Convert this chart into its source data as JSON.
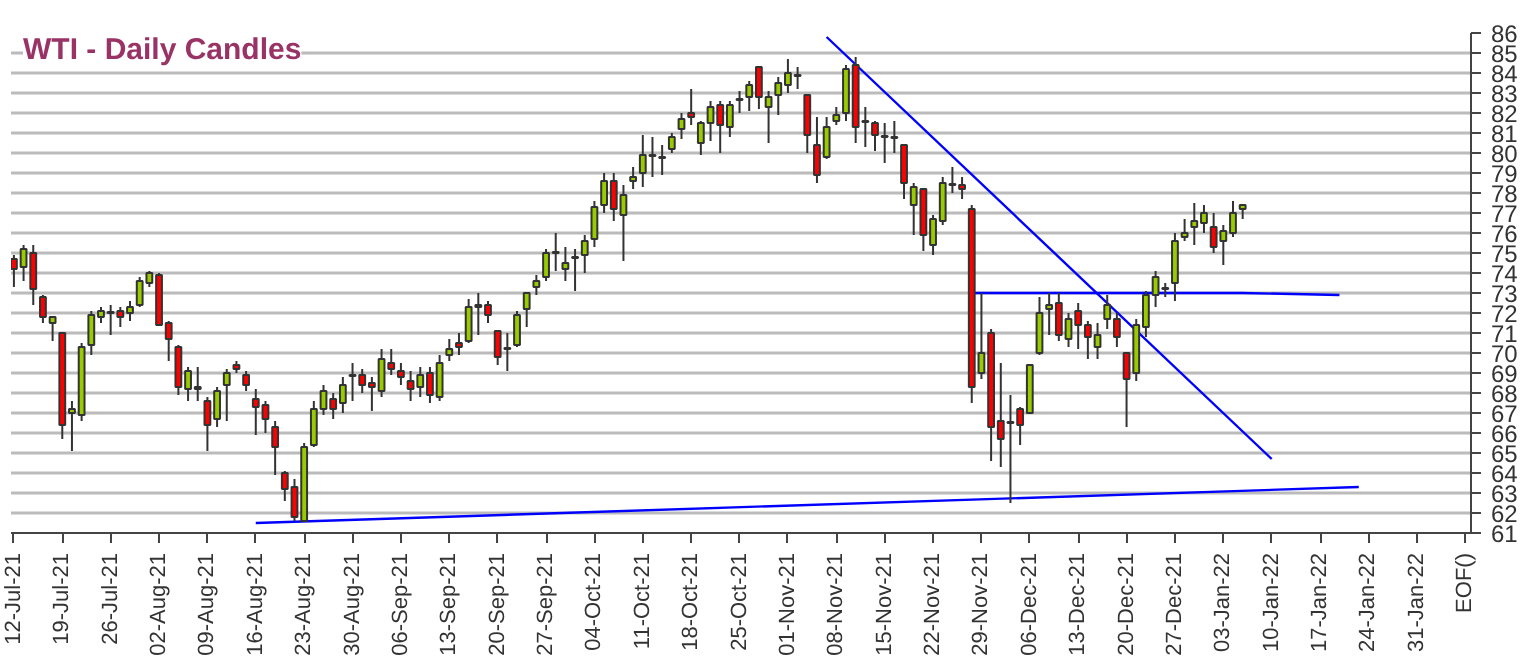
{
  "chart_data": {
    "type": "candlestick",
    "title": "WTI - Daily Candles",
    "ohlc": [
      [
        74.7,
        74.9,
        73.3,
        74.2
      ],
      [
        74.3,
        75.4,
        73.6,
        75.2
      ],
      [
        75.0,
        75.4,
        72.4,
        73.2
      ],
      [
        72.8,
        72.9,
        71.5,
        71.8
      ],
      [
        71.5,
        71.8,
        70.6,
        71.8
      ],
      [
        71.0,
        71.0,
        65.7,
        66.4
      ],
      [
        67.0,
        67.6,
        65.1,
        67.2
      ],
      [
        66.9,
        70.5,
        66.6,
        70.3
      ],
      [
        70.4,
        72.1,
        69.9,
        71.9
      ],
      [
        71.8,
        72.3,
        71.5,
        72.1
      ],
      [
        72.05,
        72.4,
        70.9,
        72.0
      ],
      [
        72.1,
        72.3,
        71.3,
        71.8
      ],
      [
        72.0,
        72.6,
        71.6,
        72.3
      ],
      [
        72.4,
        73.8,
        72.3,
        73.6
      ],
      [
        73.5,
        74.1,
        73.3,
        74.0
      ],
      [
        73.9,
        74.0,
        71.4,
        71.4
      ],
      [
        71.5,
        71.6,
        69.6,
        70.7
      ],
      [
        70.3,
        70.4,
        67.9,
        68.3
      ],
      [
        68.2,
        69.3,
        67.6,
        69.1
      ],
      [
        68.3,
        69.3,
        67.6,
        68.2
      ],
      [
        67.6,
        67.8,
        65.1,
        66.4
      ],
      [
        66.7,
        68.3,
        66.3,
        68.1
      ],
      [
        68.4,
        69.2,
        66.6,
        69.0
      ],
      [
        69.4,
        69.6,
        69.0,
        69.2
      ],
      [
        68.9,
        69.1,
        68.1,
        68.4
      ],
      [
        67.7,
        68.2,
        65.9,
        67.3
      ],
      [
        67.4,
        67.6,
        66.0,
        66.7
      ],
      [
        66.3,
        66.6,
        63.9,
        65.3
      ],
      [
        64.0,
        64.1,
        62.6,
        63.2
      ],
      [
        63.3,
        63.7,
        61.6,
        61.8
      ],
      [
        61.6,
        65.5,
        61.6,
        65.3
      ],
      [
        65.4,
        67.6,
        65.3,
        67.2
      ],
      [
        67.2,
        68.4,
        66.9,
        68.1
      ],
      [
        67.7,
        68.0,
        66.7,
        67.2
      ],
      [
        67.5,
        68.8,
        67.0,
        68.4
      ],
      [
        68.85,
        69.5,
        67.6,
        68.9
      ],
      [
        68.9,
        69.2,
        68.0,
        68.4
      ],
      [
        68.5,
        68.8,
        67.1,
        68.3
      ],
      [
        68.1,
        70.2,
        67.8,
        69.7
      ],
      [
        69.5,
        70.2,
        68.9,
        69.2
      ],
      [
        69.1,
        69.5,
        68.4,
        68.8
      ],
      [
        68.6,
        69.1,
        67.6,
        68.2
      ],
      [
        68.3,
        69.3,
        67.8,
        68.9
      ],
      [
        69.0,
        69.3,
        67.5,
        67.9
      ],
      [
        67.8,
        69.9,
        67.6,
        69.5
      ],
      [
        69.9,
        70.7,
        69.6,
        70.2
      ],
      [
        70.5,
        71.0,
        69.9,
        70.3
      ],
      [
        70.6,
        72.7,
        70.5,
        72.3
      ],
      [
        72.4,
        73.0,
        70.9,
        72.3
      ],
      [
        72.4,
        72.6,
        71.5,
        71.9
      ],
      [
        71.1,
        71.1,
        69.4,
        69.8
      ],
      [
        70.2,
        71.0,
        69.1,
        70.25
      ],
      [
        70.4,
        72.1,
        70.3,
        71.9
      ],
      [
        72.2,
        73.0,
        71.3,
        73.0
      ],
      [
        73.3,
        73.9,
        72.9,
        73.6
      ],
      [
        73.8,
        75.2,
        73.6,
        75.0
      ],
      [
        75.0,
        76.0,
        74.1,
        75.05
      ],
      [
        74.2,
        75.3,
        73.6,
        74.5
      ],
      [
        74.8,
        75.2,
        73.1,
        74.75
      ],
      [
        74.9,
        75.9,
        74.0,
        75.6
      ],
      [
        75.7,
        77.6,
        75.3,
        77.3
      ],
      [
        77.4,
        79.0,
        77.0,
        78.6
      ],
      [
        78.6,
        79.0,
        76.6,
        77.2
      ],
      [
        76.9,
        78.4,
        74.6,
        77.9
      ],
      [
        78.6,
        79.3,
        78.2,
        78.8
      ],
      [
        79.0,
        80.9,
        78.3,
        79.9
      ],
      [
        79.85,
        80.8,
        78.8,
        79.9
      ],
      [
        79.8,
        80.4,
        78.9,
        79.75
      ],
      [
        80.2,
        81.0,
        80.0,
        80.8
      ],
      [
        81.2,
        82.0,
        80.7,
        81.7
      ],
      [
        82.0,
        83.2,
        81.4,
        81.8
      ],
      [
        80.5,
        81.6,
        79.9,
        81.5
      ],
      [
        81.5,
        82.6,
        80.6,
        82.3
      ],
      [
        82.4,
        82.6,
        80.0,
        81.4
      ],
      [
        81.3,
        82.6,
        80.8,
        82.4
      ],
      [
        82.65,
        83.1,
        82.0,
        82.7
      ],
      [
        82.8,
        83.6,
        82.1,
        83.4
      ],
      [
        84.3,
        84.3,
        82.2,
        82.8
      ],
      [
        82.3,
        83.1,
        80.5,
        82.8
      ],
      [
        82.9,
        83.8,
        81.9,
        83.5
      ],
      [
        83.4,
        84.7,
        83.0,
        84.0
      ],
      [
        83.9,
        84.3,
        83.2,
        83.85
      ],
      [
        82.9,
        82.9,
        80.0,
        80.9
      ],
      [
        80.4,
        81.8,
        78.5,
        78.9
      ],
      [
        79.8,
        81.8,
        79.7,
        81.3
      ],
      [
        81.6,
        82.3,
        81.4,
        81.9
      ],
      [
        82.0,
        84.4,
        81.6,
        84.2
      ],
      [
        84.4,
        84.8,
        80.5,
        81.3
      ],
      [
        81.6,
        82.3,
        80.3,
        81.55
      ],
      [
        81.5,
        81.6,
        80.1,
        80.9
      ],
      [
        80.85,
        81.5,
        79.5,
        80.8
      ],
      [
        80.8,
        81.6,
        80.0,
        80.75
      ],
      [
        80.4,
        80.4,
        77.7,
        78.5
      ],
      [
        77.4,
        78.5,
        75.9,
        78.3
      ],
      [
        78.2,
        78.2,
        75.1,
        75.9
      ],
      [
        75.4,
        76.9,
        74.9,
        76.7
      ],
      [
        76.6,
        78.8,
        76.4,
        78.5
      ],
      [
        78.4,
        79.3,
        78.0,
        78.45
      ],
      [
        78.4,
        78.8,
        77.7,
        78.2
      ],
      [
        77.2,
        77.4,
        67.5,
        68.3
      ],
      [
        69.0,
        73.0,
        68.7,
        70.0
      ],
      [
        71.0,
        71.2,
        64.6,
        66.3
      ],
      [
        66.6,
        69.5,
        64.3,
        65.7
      ],
      [
        66.55,
        67.9,
        62.5,
        66.5
      ],
      [
        67.2,
        67.3,
        65.4,
        66.4
      ],
      [
        67.0,
        69.4,
        67.0,
        69.4
      ],
      [
        70.0,
        72.8,
        69.9,
        72.0
      ],
      [
        72.2,
        73.0,
        70.9,
        72.4
      ],
      [
        72.5,
        73.0,
        70.6,
        70.9
      ],
      [
        70.7,
        72.0,
        70.3,
        71.7
      ],
      [
        72.1,
        72.5,
        70.2,
        71.4
      ],
      [
        71.4,
        71.6,
        69.7,
        70.8
      ],
      [
        70.3,
        71.5,
        69.7,
        70.9
      ],
      [
        71.7,
        72.9,
        71.2,
        72.4
      ],
      [
        71.7,
        72.0,
        70.3,
        70.8
      ],
      [
        70.0,
        70.0,
        66.3,
        68.7
      ],
      [
        69.0,
        71.7,
        68.6,
        71.4
      ],
      [
        71.3,
        73.1,
        70.8,
        72.9
      ],
      [
        72.9,
        74.1,
        72.3,
        73.8
      ],
      [
        73.2,
        73.5,
        72.8,
        73.25
      ],
      [
        73.5,
        76.0,
        72.6,
        75.6
      ],
      [
        75.8,
        76.7,
        75.6,
        76.0
      ],
      [
        76.3,
        77.5,
        75.4,
        76.6
      ],
      [
        76.5,
        77.4,
        76.0,
        77.0
      ],
      [
        76.3,
        77.0,
        75.0,
        75.3
      ],
      [
        75.6,
        76.4,
        74.4,
        76.1
      ],
      [
        76.0,
        77.6,
        75.8,
        77.0
      ],
      [
        77.2,
        77.4,
        76.7,
        77.4
      ],
      null,
      null,
      null,
      null,
      null,
      null,
      null,
      null,
      null,
      null,
      null,
      null,
      null,
      null,
      null,
      null,
      null,
      null,
      null,
      null,
      null,
      null,
      null
    ],
    "colors": [
      "#ff0000",
      "#99cc00",
      "#ff0000",
      "#ff0000",
      "#99cc00",
      "#ff0000",
      "#99cc00",
      "#99cc00",
      "#99cc00",
      "#99cc00",
      "#ff0000",
      "#ff0000",
      "#99cc00",
      "#99cc00",
      "#99cc00",
      "#ff0000",
      "#ff0000",
      "#ff0000",
      "#99cc00",
      "#ff0000",
      "#ff0000",
      "#99cc00",
      "#99cc00",
      "#ff0000",
      "#ff0000",
      "#ff0000",
      "#ff0000",
      "#ff0000",
      "#ff0000",
      "#ff0000",
      "#99cc00",
      "#99cc00",
      "#99cc00",
      "#ff0000",
      "#99cc00",
      "#99cc00",
      "#ff0000",
      "#ff0000",
      "#99cc00",
      "#ff0000",
      "#ff0000",
      "#ff0000",
      "#99cc00",
      "#ff0000",
      "#99cc00",
      "#99cc00",
      "#ff0000",
      "#99cc00",
      "#ff0000",
      "#ff0000",
      "#ff0000",
      "#99cc00",
      "#99cc00",
      "#99cc00",
      "#99cc00",
      "#99cc00",
      "#99cc00",
      "#99cc00",
      "#ff0000",
      "#99cc00",
      "#99cc00",
      "#99cc00",
      "#ff0000",
      "#99cc00",
      "#99cc00",
      "#99cc00",
      "#99cc00",
      "#ff0000",
      "#99cc00",
      "#99cc00",
      "#ff0000",
      "#99cc00",
      "#99cc00",
      "#ff0000",
      "#99cc00",
      "#99cc00",
      "#99cc00",
      "#ff0000",
      "#99cc00",
      "#99cc00",
      "#99cc00",
      "#ff0000",
      "#ff0000",
      "#ff0000",
      "#99cc00",
      "#99cc00",
      "#99cc00",
      "#ff0000",
      "#ff0000",
      "#ff0000",
      "#ff0000",
      "#ff0000",
      "#ff0000",
      "#99cc00",
      "#ff0000",
      "#99cc00",
      "#99cc00",
      "#99cc00",
      "#ff0000",
      "#ff0000",
      "#99cc00",
      "#ff0000",
      "#ff0000",
      "#ff0000",
      "#ff0000",
      "#99cc00",
      "#99cc00",
      "#99cc00",
      "#ff0000",
      "#99cc00",
      "#ff0000",
      "#ff0000",
      "#99cc00",
      "#99cc00",
      "#ff0000",
      "#ff0000",
      "#99cc00",
      "#99cc00",
      "#99cc00",
      "#99cc00",
      "#99cc00",
      "#99cc00",
      "#99cc00",
      "#99cc00",
      "#ff0000",
      "#99cc00",
      "#99cc00",
      "#99cc00",
      null,
      null,
      null,
      null,
      null,
      null,
      null,
      null,
      null,
      null,
      null,
      null,
      null,
      null,
      null,
      null,
      null,
      null,
      null,
      null,
      null,
      null,
      null
    ],
    "series": [
      {
        "type": "line",
        "color": "#0000ff",
        "values": [
          null,
          null,
          null,
          null,
          null,
          null,
          null,
          null,
          null,
          null,
          null,
          null,
          null,
          null,
          null,
          null,
          null,
          null,
          null,
          null,
          null,
          null,
          null,
          null,
          null,
          null,
          null,
          null,
          null,
          null,
          null,
          null,
          null,
          null,
          null,
          null,
          null,
          null,
          null,
          null,
          null,
          null,
          null,
          null,
          null,
          null,
          null,
          null,
          null,
          null,
          null,
          null,
          null,
          null,
          null,
          null,
          null,
          null,
          null,
          null,
          null,
          null,
          null,
          null,
          null,
          null,
          null,
          null,
          null,
          null,
          null,
          null,
          null,
          null,
          null,
          null,
          null,
          null,
          null,
          null,
          null,
          null,
          null,
          null,
          85.8,
          null,
          null,
          null,
          null,
          null,
          null,
          null,
          null,
          null,
          null,
          null,
          null,
          null,
          null,
          null,
          null,
          null,
          null,
          null,
          null,
          null,
          null,
          null,
          null,
          null,
          null,
          null,
          null,
          null,
          null,
          null,
          null,
          null,
          null,
          null,
          null,
          null,
          null,
          null,
          null,
          null,
          null,
          null,
          null,
          null,
          64.7,
          null,
          null,
          null,
          null,
          null,
          null,
          null,
          null,
          null,
          null,
          null,
          null,
          null,
          null,
          null,
          null,
          null,
          null,
          null,
          null
        ]
      },
      {
        "type": "line",
        "color": "#0000ff",
        "values": [
          null,
          null,
          null,
          null,
          null,
          null,
          null,
          null,
          null,
          null,
          null,
          null,
          null,
          null,
          null,
          null,
          null,
          null,
          null,
          null,
          null,
          null,
          null,
          null,
          null,
          null,
          null,
          null,
          null,
          null,
          null,
          null,
          null,
          null,
          null,
          null,
          null,
          null,
          null,
          null,
          null,
          null,
          null,
          null,
          null,
          null,
          null,
          null,
          null,
          null,
          null,
          null,
          null,
          null,
          null,
          null,
          null,
          null,
          null,
          null,
          null,
          null,
          null,
          null,
          null,
          null,
          null,
          null,
          null,
          null,
          null,
          null,
          null,
          null,
          null,
          null,
          null,
          null,
          null,
          null,
          null,
          null,
          null,
          null,
          null,
          null,
          null,
          null,
          null,
          null,
          null,
          null,
          null,
          null,
          null,
          null,
          null,
          null,
          null,
          73.0,
          null,
          null,
          null,
          null,
          null,
          null,
          null,
          null,
          null,
          null,
          null,
          null,
          null,
          null,
          null,
          null,
          null,
          null,
          null,
          null,
          null,
          null,
          null,
          null,
          null,
          null,
          null,
          73.0,
          null,
          null,
          null,
          null,
          null,
          null,
          null,
          null,
          null,
          72.9,
          null,
          null,
          null,
          null,
          null,
          null,
          null,
          null,
          null,
          null,
          null,
          null,
          null
        ]
      },
      {
        "type": "line",
        "color": "#0000ff",
        "values": [
          null,
          null,
          null,
          null,
          null,
          null,
          null,
          null,
          null,
          null,
          null,
          null,
          null,
          null,
          null,
          null,
          null,
          null,
          null,
          null,
          null,
          null,
          null,
          null,
          null,
          61.5,
          null,
          null,
          null,
          null,
          null,
          null,
          null,
          null,
          null,
          null,
          null,
          null,
          null,
          null,
          null,
          null,
          null,
          null,
          null,
          null,
          null,
          null,
          null,
          null,
          null,
          null,
          null,
          null,
          null,
          null,
          null,
          null,
          null,
          null,
          null,
          null,
          null,
          null,
          null,
          null,
          null,
          null,
          null,
          null,
          null,
          null,
          null,
          null,
          null,
          null,
          null,
          null,
          null,
          null,
          null,
          null,
          null,
          null,
          null,
          null,
          null,
          null,
          null,
          null,
          null,
          null,
          null,
          null,
          null,
          null,
          null,
          null,
          null,
          null,
          null,
          null,
          null,
          null,
          null,
          null,
          null,
          null,
          null,
          null,
          null,
          null,
          null,
          null,
          null,
          null,
          null,
          null,
          null,
          null,
          null,
          null,
          null,
          null,
          null,
          null,
          null,
          null,
          null,
          null,
          null,
          null,
          null,
          null,
          null,
          null,
          null,
          null,
          null,
          63.3,
          null,
          null,
          null,
          null,
          null,
          null,
          null,
          null,
          null,
          null,
          null
        ]
      }
    ],
    "categories": [
      "12-Jul-21",
      null,
      null,
      null,
      null,
      "19-Jul-21",
      null,
      null,
      null,
      null,
      "26-Jul-21",
      null,
      null,
      null,
      null,
      "02-Aug-21",
      null,
      null,
      null,
      null,
      "09-Aug-21",
      null,
      null,
      null,
      null,
      "16-Aug-21",
      null,
      null,
      null,
      null,
      "23-Aug-21",
      null,
      null,
      null,
      null,
      "30-Aug-21",
      null,
      null,
      null,
      null,
      "06-Sep-21",
      null,
      null,
      null,
      null,
      "13-Sep-21",
      null,
      null,
      null,
      null,
      "20-Sep-21",
      null,
      null,
      null,
      null,
      "27-Sep-21",
      null,
      null,
      null,
      null,
      "04-Oct-21",
      null,
      null,
      null,
      null,
      "11-Oct-21",
      null,
      null,
      null,
      null,
      "18-Oct-21",
      null,
      null,
      null,
      null,
      "25-Oct-21",
      null,
      null,
      null,
      null,
      "01-Nov-21",
      null,
      null,
      null,
      null,
      "08-Nov-21",
      null,
      null,
      null,
      null,
      "15-Nov-21",
      null,
      null,
      null,
      null,
      "22-Nov-21",
      null,
      null,
      null,
      null,
      "29-Nov-21",
      null,
      null,
      null,
      null,
      "06-Dec-21",
      null,
      null,
      null,
      null,
      "13-Dec-21",
      null,
      null,
      null,
      null,
      "20-Dec-21",
      null,
      null,
      null,
      null,
      "27-Dec-21",
      null,
      null,
      null,
      null,
      "03-Jan-22",
      null,
      null,
      null,
      null,
      "10-Jan-22",
      null,
      null,
      null,
      null,
      "17-Jan-22",
      null,
      null,
      null,
      null,
      "24-Jan-22",
      null,
      null,
      null,
      null,
      "31-Jan-22",
      null,
      null,
      null,
      null,
      "EOF()"
    ],
    "ylim": [
      61,
      86
    ],
    "yticks": [
      61,
      62,
      63,
      64,
      65,
      66,
      67,
      68,
      69,
      70,
      71,
      72,
      73,
      74,
      75,
      76,
      77,
      78,
      79,
      80,
      81,
      82,
      83,
      84,
      85,
      86
    ],
    "grid": "y"
  }
}
